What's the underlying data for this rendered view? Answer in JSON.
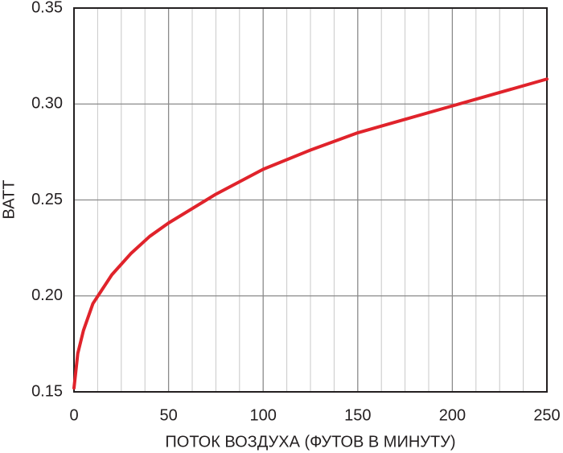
{
  "chart_data": {
    "type": "line",
    "xlabel": "ПОТОК ВОЗДУХА (ФУТОВ В МИНУТУ)",
    "ylabel": "ВАТТ",
    "x": [
      0,
      2,
      5,
      10,
      20,
      30,
      40,
      50,
      75,
      100,
      125,
      150,
      175,
      200,
      225,
      250
    ],
    "series": [
      {
        "color": "#e0232b",
        "values": [
          0.152,
          0.17,
          0.182,
          0.196,
          0.211,
          0.222,
          0.231,
          0.238,
          0.253,
          0.266,
          0.276,
          0.285,
          0.292,
          0.299,
          0.306,
          0.313
        ]
      }
    ],
    "xlim": [
      0,
      250
    ],
    "xticks": [
      0,
      50,
      100,
      150,
      200,
      250
    ],
    "xminorticks": [
      12.5,
      25,
      37.5,
      62.5,
      75,
      87.5,
      112.5,
      125,
      137.5,
      162.5,
      175,
      187.5,
      212.5,
      225,
      237.5
    ],
    "ylim": [
      0.15,
      0.35
    ],
    "yticks": [
      0.15,
      {
        "value": 0.2,
        "label": "0.20"
      },
      0.25,
      {
        "value": 0.3,
        "label": "0.30"
      },
      0.35
    ],
    "grid": true
  }
}
